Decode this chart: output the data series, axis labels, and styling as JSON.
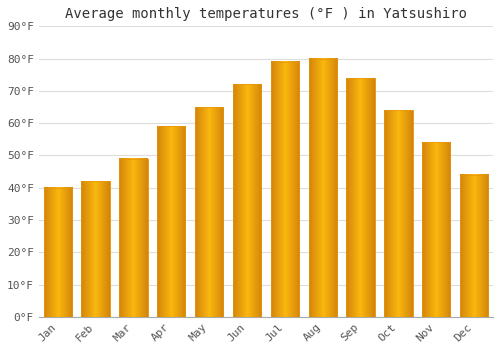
{
  "title": "Average monthly temperatures (°F ) in Yatsushiro",
  "months": [
    "Jan",
    "Feb",
    "Mar",
    "Apr",
    "May",
    "Jun",
    "Jul",
    "Aug",
    "Sep",
    "Oct",
    "Nov",
    "Dec"
  ],
  "values": [
    40,
    42,
    49,
    59,
    65,
    72,
    79,
    80,
    74,
    64,
    54,
    44
  ],
  "bar_color_center": "#FFC733",
  "bar_color_edge": "#E8960A",
  "bar_gradient_left": "#F0A500",
  "bar_gradient_right": "#F0A500",
  "ylim": [
    0,
    90
  ],
  "yticks": [
    0,
    10,
    20,
    30,
    40,
    50,
    60,
    70,
    80,
    90
  ],
  "ytick_labels": [
    "0°F",
    "10°F",
    "20°F",
    "30°F",
    "40°F",
    "50°F",
    "60°F",
    "70°F",
    "80°F",
    "90°F"
  ],
  "background_color": "#ffffff",
  "grid_color": "#dddddd",
  "title_fontsize": 10,
  "tick_fontsize": 8,
  "xlabel_rotation": 45,
  "bar_width": 0.75
}
